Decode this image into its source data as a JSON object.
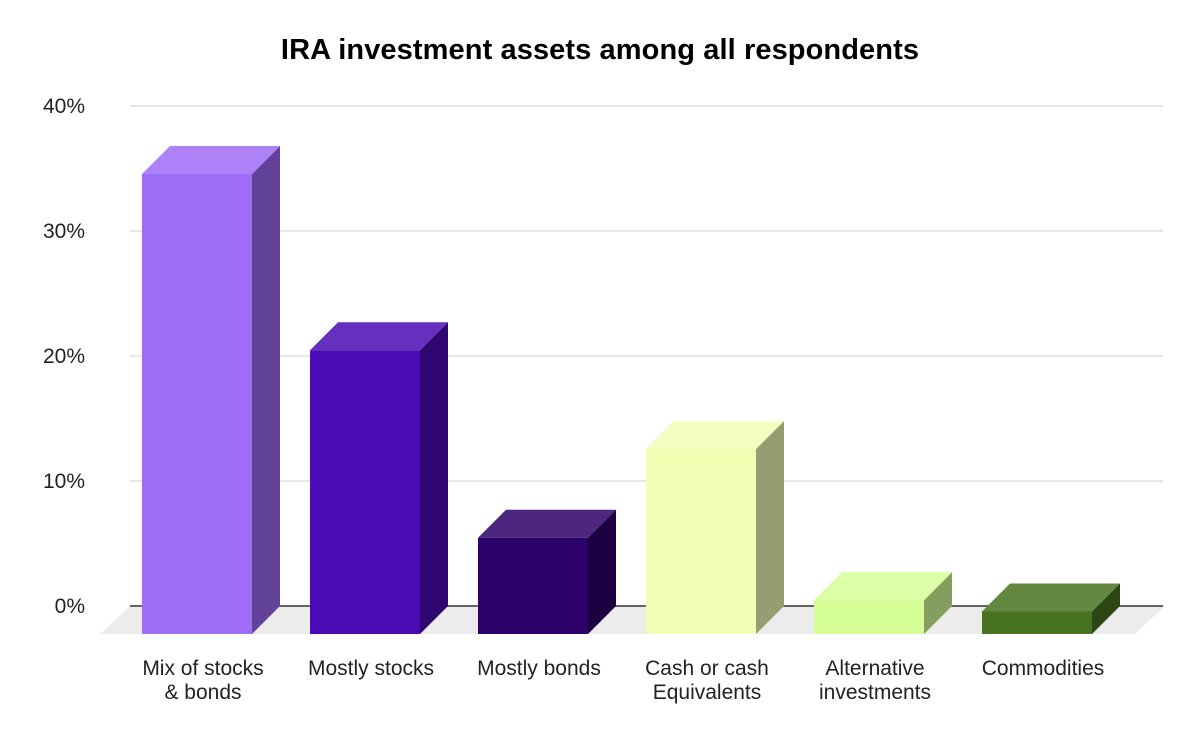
{
  "chart_data": {
    "type": "bar",
    "title": "IRA investment assets among all respondents",
    "xlabel": "",
    "ylabel": "",
    "ylim": [
      0,
      40
    ],
    "y_ticks": [
      0,
      10,
      20,
      30,
      40
    ],
    "y_tick_labels": [
      "0%",
      "10%",
      "20%",
      "30%",
      "40%"
    ],
    "grid": true,
    "legend": "none",
    "categories": [
      [
        "Mix of stocks",
        "& bonds"
      ],
      [
        "Mostly stocks"
      ],
      [
        "Mostly bonds"
      ],
      [
        "Cash or cash",
        "Equivalents"
      ],
      [
        "Alternative",
        "investments"
      ],
      [
        "Commodities"
      ]
    ],
    "values": [
      36.8,
      22.7,
      7.7,
      14.8,
      2.7,
      1.8
    ],
    "colors": [
      "#9e6cf6",
      "#4b0ab3",
      "#2d0069",
      "#f0ffb4",
      "#d5ff96",
      "#477321"
    ]
  }
}
